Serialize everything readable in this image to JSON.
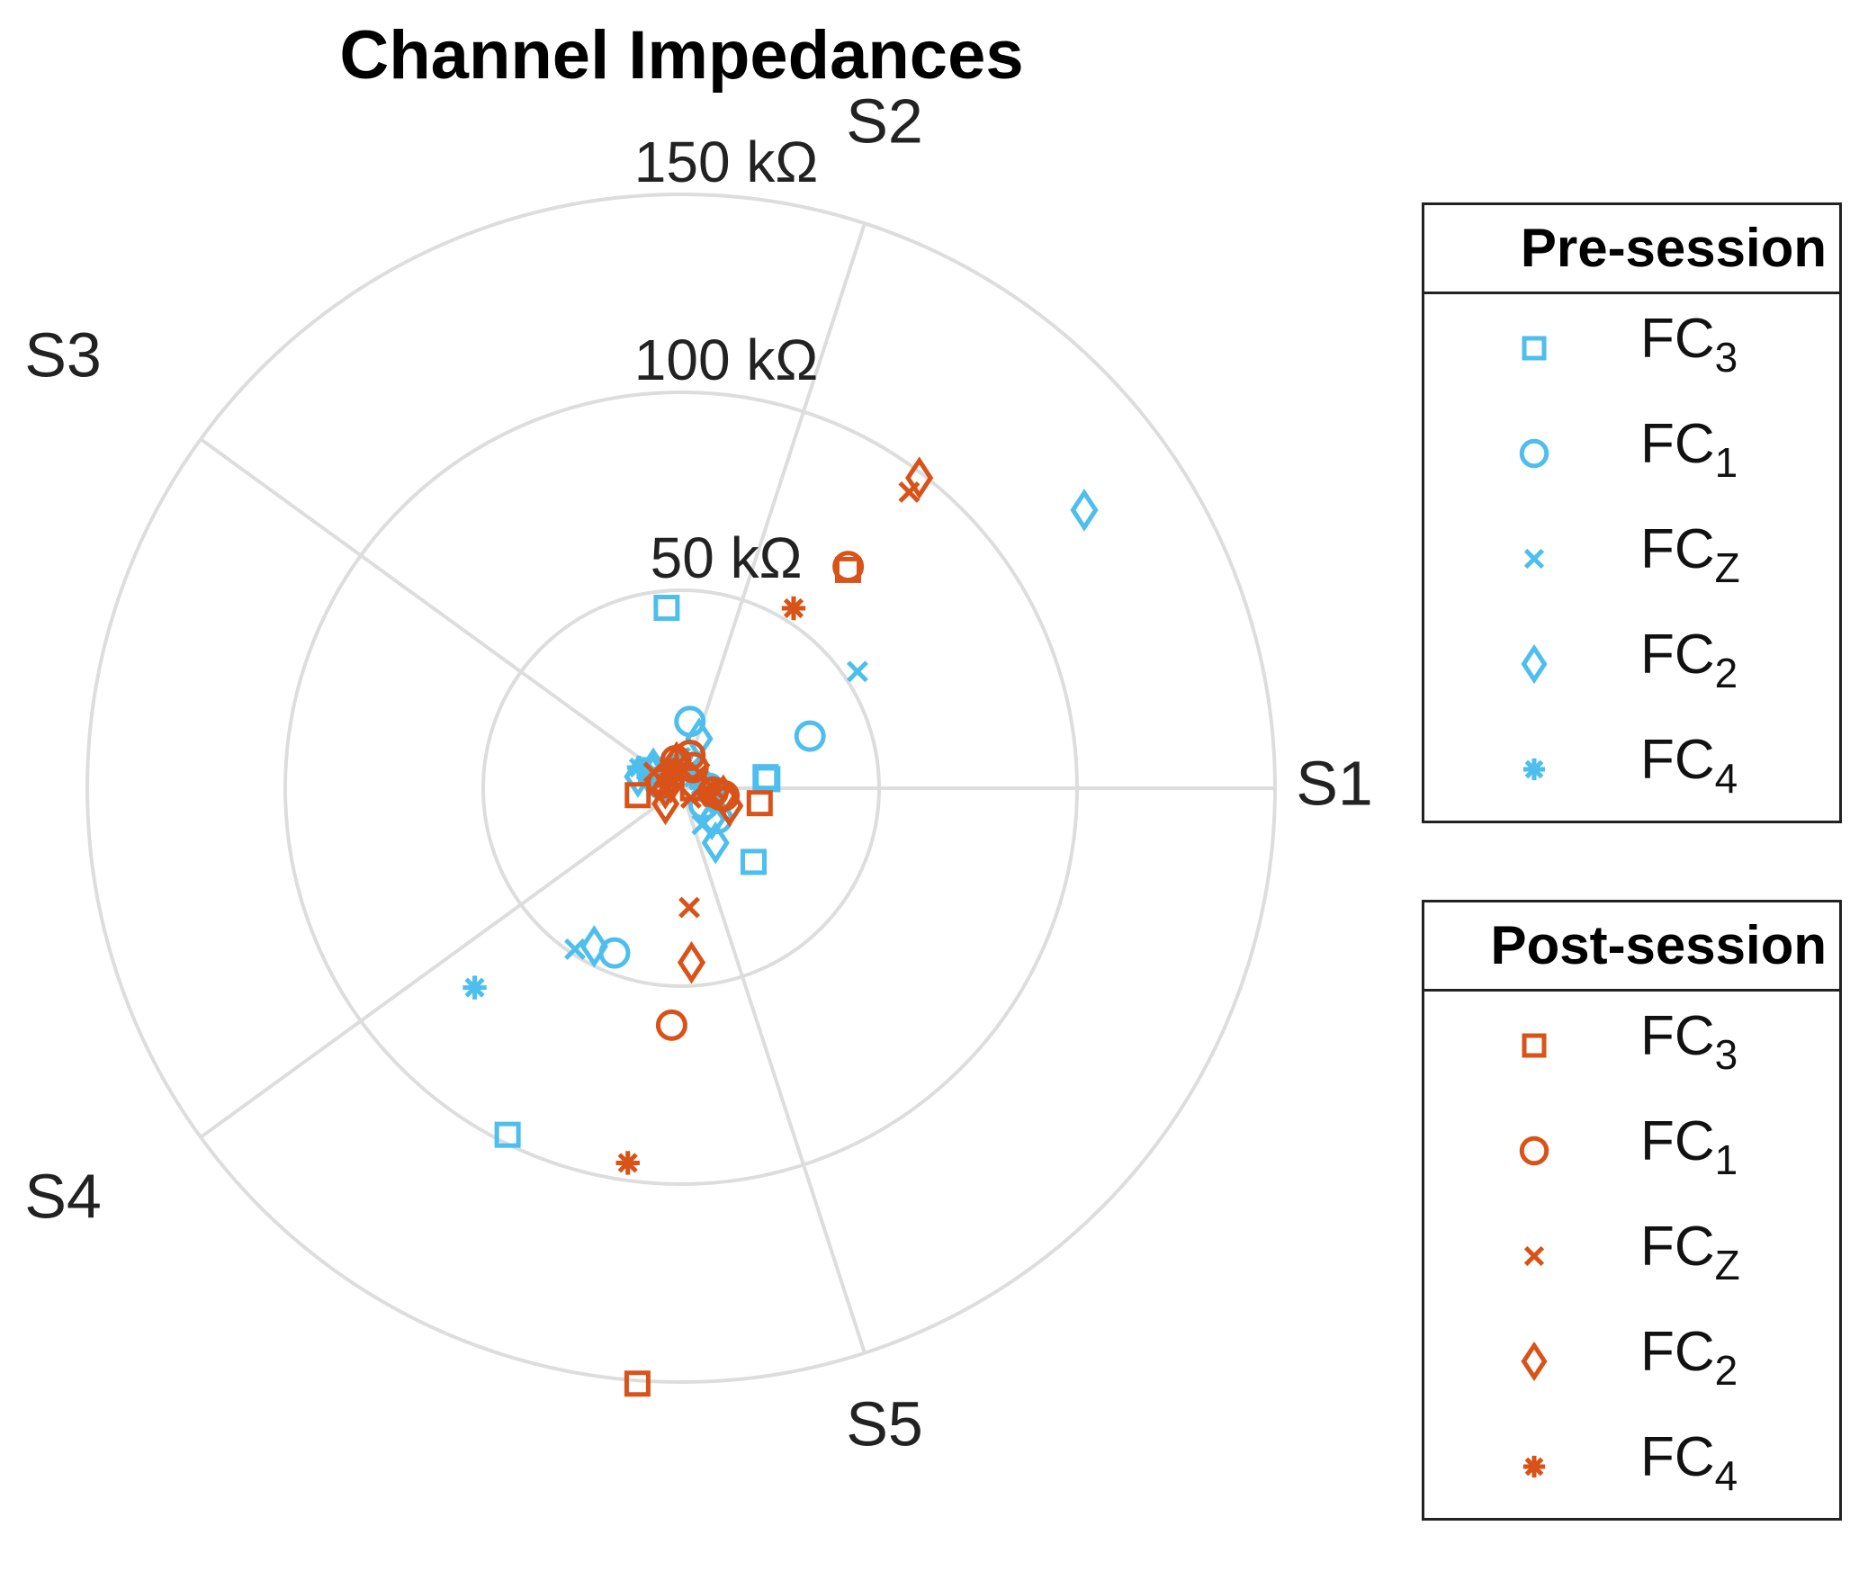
{
  "chart_data": {
    "type": "polar-scatter",
    "title": "Channel Impedances",
    "r_ticks": [
      {
        "value": 50,
        "label": "50 kΩ"
      },
      {
        "value": 100,
        "label": "100 kΩ"
      },
      {
        "value": 150,
        "label": "150 kΩ"
      }
    ],
    "r_max": 150,
    "unit": "kΩ",
    "sectors": [
      {
        "label": "S1",
        "angle_deg": 0
      },
      {
        "label": "S2",
        "angle_deg": 72
      },
      {
        "label": "S3",
        "angle_deg": 144
      },
      {
        "label": "S4",
        "angle_deg": 216
      },
      {
        "label": "S5",
        "angle_deg": 288
      }
    ],
    "colors": {
      "pre": "#4DBEEE",
      "post": "#D95319",
      "grid": "#dddddd"
    },
    "legends": [
      {
        "group": "pre",
        "title": "Pre-session",
        "items": [
          {
            "symbol": "square",
            "label": "FC",
            "sub": "3"
          },
          {
            "symbol": "circle",
            "label": "FC",
            "sub": "1"
          },
          {
            "symbol": "x",
            "label": "FC",
            "sub": "Z"
          },
          {
            "symbol": "diamond",
            "label": "FC",
            "sub": "2"
          },
          {
            "symbol": "asterisk",
            "label": "FC",
            "sub": "4"
          }
        ]
      },
      {
        "group": "post",
        "title": "Post-session",
        "items": [
          {
            "symbol": "square",
            "label": "FC",
            "sub": "3"
          },
          {
            "symbol": "circle",
            "label": "FC",
            "sub": "1"
          },
          {
            "symbol": "x",
            "label": "FC",
            "sub": "Z"
          },
          {
            "symbol": "diamond",
            "label": "FC",
            "sub": "2"
          },
          {
            "symbol": "asterisk",
            "label": "FC",
            "sub": "4"
          }
        ]
      }
    ],
    "points": [
      {
        "group": "pre",
        "channel": "FC3",
        "symbol": "square",
        "r": 45.7,
        "theta": 94.6
      },
      {
        "group": "pre",
        "channel": "FC3",
        "symbol": "square",
        "r": 21.9,
        "theta": 6.0
      },
      {
        "group": "pre",
        "channel": "FC3",
        "symbol": "square",
        "r": 21.5,
        "theta": 7.5
      },
      {
        "group": "pre",
        "channel": "FC3",
        "symbol": "square",
        "r": 26.1,
        "theta": -45.5
      },
      {
        "group": "pre",
        "channel": "FC3",
        "symbol": "square",
        "r": 97.9,
        "theta": -116.6
      },
      {
        "group": "pre",
        "channel": "FC3",
        "symbol": "square",
        "r": 8.9,
        "theta": 149.0
      },
      {
        "group": "pre",
        "channel": "FC1",
        "symbol": "circle",
        "r": 17.0,
        "theta": 82.5
      },
      {
        "group": "pre",
        "channel": "FC1",
        "symbol": "circle",
        "r": 35.1,
        "theta": 22.0
      },
      {
        "group": "pre",
        "channel": "FC1",
        "symbol": "circle",
        "r": 7.1,
        "theta": -35.4
      },
      {
        "group": "pre",
        "channel": "FC1",
        "symbol": "circle",
        "r": 44.9,
        "theta": -112.0
      },
      {
        "group": "pre",
        "channel": "FC1",
        "symbol": "circle",
        "r": 4.8,
        "theta": 170.0
      },
      {
        "group": "pre",
        "channel": "FC1",
        "symbol": "circle",
        "r": 7.0,
        "theta": 0.0
      },
      {
        "group": "pre",
        "channel": "FC1",
        "symbol": "circle",
        "r": 11.9,
        "theta": -40.0
      },
      {
        "group": "pre",
        "channel": "FC1",
        "symbol": "circle",
        "r": 4.9,
        "theta": 119.0
      },
      {
        "group": "pre",
        "channel": "FC1",
        "symbol": "circle",
        "r": 4.9,
        "theta": 110.0
      },
      {
        "group": "pre",
        "channel": "FC1",
        "symbol": "circle",
        "r": 5.9,
        "theta": 164.0
      },
      {
        "group": "pre",
        "channel": "FCZ",
        "symbol": "x",
        "r": 53.4,
        "theta": 33.5
      },
      {
        "group": "pre",
        "channel": "FCZ",
        "symbol": "x",
        "r": 48.7,
        "theta": -123.4
      },
      {
        "group": "pre",
        "channel": "FCZ",
        "symbol": "x",
        "r": 7.1,
        "theta": 149.0
      },
      {
        "group": "pre",
        "channel": "FCZ",
        "symbol": "x",
        "r": 5.0,
        "theta": 103.0
      },
      {
        "group": "pre",
        "channel": "FCZ",
        "symbol": "x",
        "r": 3.2,
        "theta": 125.0
      },
      {
        "group": "pre",
        "channel": "FCZ",
        "symbol": "x",
        "r": 6.1,
        "theta": 65.0
      },
      {
        "group": "pre",
        "channel": "FCZ",
        "symbol": "x",
        "r": 10.6,
        "theta": -60.0
      },
      {
        "group": "pre",
        "channel": "FCZ",
        "symbol": "x",
        "r": 9.0,
        "theta": -15.0
      },
      {
        "group": "pre",
        "channel": "FCZ",
        "symbol": "x",
        "r": 5.0,
        "theta": 25.0
      },
      {
        "group": "pre",
        "channel": "FC2",
        "symbol": "diamond",
        "r": 123.7,
        "theta": 34.6
      },
      {
        "group": "pre",
        "channel": "FC2",
        "symbol": "diamond",
        "r": 45.6,
        "theta": -118.8
      },
      {
        "group": "pre",
        "channel": "FC2",
        "symbol": "diamond",
        "r": 16.3,
        "theta": -57.8
      },
      {
        "group": "pre",
        "channel": "FC2",
        "symbol": "diamond",
        "r": 13.3,
        "theta": 70.0
      },
      {
        "group": "pre",
        "channel": "FC2",
        "symbol": "diamond",
        "r": 11.3,
        "theta": 165.0
      },
      {
        "group": "pre",
        "channel": "FC2",
        "symbol": "diamond",
        "r": 8.6,
        "theta": 145.0
      },
      {
        "group": "pre",
        "channel": "FC2",
        "symbol": "diamond",
        "r": 11.0,
        "theta": -45.0
      },
      {
        "group": "pre",
        "channel": "FC2",
        "symbol": "diamond",
        "r": 7.9,
        "theta": 155.0
      },
      {
        "group": "pre",
        "channel": "FC2",
        "symbol": "diamond",
        "r": 8.0,
        "theta": -12.0
      },
      {
        "group": "pre",
        "channel": "FC4",
        "symbol": "asterisk",
        "r": 72.5,
        "theta": -136.0
      },
      {
        "group": "pre",
        "channel": "FC4",
        "symbol": "asterisk",
        "r": 5.0,
        "theta": 7.0
      },
      {
        "group": "pre",
        "channel": "FC4",
        "symbol": "asterisk",
        "r": 8.0,
        "theta": 90.0
      },
      {
        "group": "pre",
        "channel": "FC4",
        "symbol": "asterisk",
        "r": 4.1,
        "theta": 40.0
      },
      {
        "group": "pre",
        "channel": "FC4",
        "symbol": "asterisk",
        "r": 11.9,
        "theta": 154.0
      },
      {
        "group": "pre",
        "channel": "FC4",
        "symbol": "asterisk",
        "r": 5.5,
        "theta": 95.0
      },
      {
        "group": "post",
        "channel": "FC3",
        "symbol": "square",
        "r": 69.4,
        "theta": 52.6
      },
      {
        "group": "post",
        "channel": "FC3",
        "symbol": "square",
        "r": 20.2,
        "theta": -10.8
      },
      {
        "group": "post",
        "channel": "FC3",
        "symbol": "square",
        "r": 150.8,
        "theta": -94.2
      },
      {
        "group": "post",
        "channel": "FC3",
        "symbol": "square",
        "r": 11.1,
        "theta": -170.9
      },
      {
        "group": "post",
        "channel": "FC3",
        "symbol": "square",
        "r": 3.0,
        "theta": 0.0
      },
      {
        "group": "post",
        "channel": "FC1",
        "symbol": "circle",
        "r": 70.1,
        "theta": 53.0
      },
      {
        "group": "post",
        "channel": "FC1",
        "symbol": "circle",
        "r": 59.9,
        "theta": -92.3
      },
      {
        "group": "post",
        "channel": "FC1",
        "symbol": "circle",
        "r": 7.1,
        "theta": 101.0
      },
      {
        "group": "post",
        "channel": "FC1",
        "symbol": "circle",
        "r": 8.6,
        "theta": 75.0
      },
      {
        "group": "post",
        "channel": "FC1",
        "symbol": "circle",
        "r": 10.1,
        "theta": -10.0
      },
      {
        "group": "post",
        "channel": "FC1",
        "symbol": "circle",
        "r": 8.1,
        "theta": -7.0
      },
      {
        "group": "post",
        "channel": "FC1",
        "symbol": "circle",
        "r": 11.0,
        "theta": -10.0
      },
      {
        "group": "post",
        "channel": "FC1",
        "symbol": "circle",
        "r": 5.0,
        "theta": 165.0
      },
      {
        "group": "post",
        "channel": "FC1",
        "symbol": "circle",
        "r": 6.0,
        "theta": 60.0
      },
      {
        "group": "post",
        "channel": "FCZ",
        "symbol": "x",
        "r": 94.4,
        "theta": 52.4
      },
      {
        "group": "post",
        "channel": "FCZ",
        "symbol": "x",
        "r": 30.2,
        "theta": -86.1
      },
      {
        "group": "post",
        "channel": "FCZ",
        "symbol": "x",
        "r": 5.1,
        "theta": 90.0
      },
      {
        "group": "post",
        "channel": "FCZ",
        "symbol": "x",
        "r": 3.0,
        "theta": 135.0
      },
      {
        "group": "post",
        "channel": "FCZ",
        "symbol": "x",
        "r": 8.0,
        "theta": 150.0
      },
      {
        "group": "post",
        "channel": "FCZ",
        "symbol": "x",
        "r": 3.5,
        "theta": -45.0
      },
      {
        "group": "post",
        "channel": "FCZ",
        "symbol": "x",
        "r": 8.3,
        "theta": -15.0
      },
      {
        "group": "post",
        "channel": "FCZ",
        "symbol": "x",
        "r": 6.1,
        "theta": 40.0
      },
      {
        "group": "post",
        "channel": "FC2",
        "symbol": "diamond",
        "r": 98.8,
        "theta": 52.5
      },
      {
        "group": "post",
        "channel": "FC2",
        "symbol": "diamond",
        "r": 44.1,
        "theta": -86.6
      },
      {
        "group": "post",
        "channel": "FC2",
        "symbol": "diamond",
        "r": 10.8,
        "theta": -10.0
      },
      {
        "group": "post",
        "channel": "FC2",
        "symbol": "diamond",
        "r": 5.6,
        "theta": -135.0
      },
      {
        "group": "post",
        "channel": "FC2",
        "symbol": "diamond",
        "r": 3.0,
        "theta": 150.0
      },
      {
        "group": "post",
        "channel": "FC2",
        "symbol": "diamond",
        "r": 6.6,
        "theta": 100.0
      },
      {
        "group": "post",
        "channel": "FC2",
        "symbol": "diamond",
        "r": 13.0,
        "theta": -20.0
      },
      {
        "group": "post",
        "channel": "FC2",
        "symbol": "diamond",
        "r": 4.0,
        "theta": 180.0
      },
      {
        "group": "post",
        "channel": "FC4",
        "symbol": "asterisk",
        "r": 53.6,
        "theta": 58.0
      },
      {
        "group": "post",
        "channel": "FC4",
        "symbol": "asterisk",
        "r": 95.6,
        "theta": -98.1
      },
      {
        "group": "post",
        "channel": "FC4",
        "symbol": "asterisk",
        "r": 4.0,
        "theta": 170.0
      },
      {
        "group": "post",
        "channel": "FC4",
        "symbol": "asterisk",
        "r": 8.1,
        "theta": 0.0
      },
      {
        "group": "post",
        "channel": "FC4",
        "symbol": "asterisk",
        "r": 6.0,
        "theta": 120.0
      }
    ]
  }
}
